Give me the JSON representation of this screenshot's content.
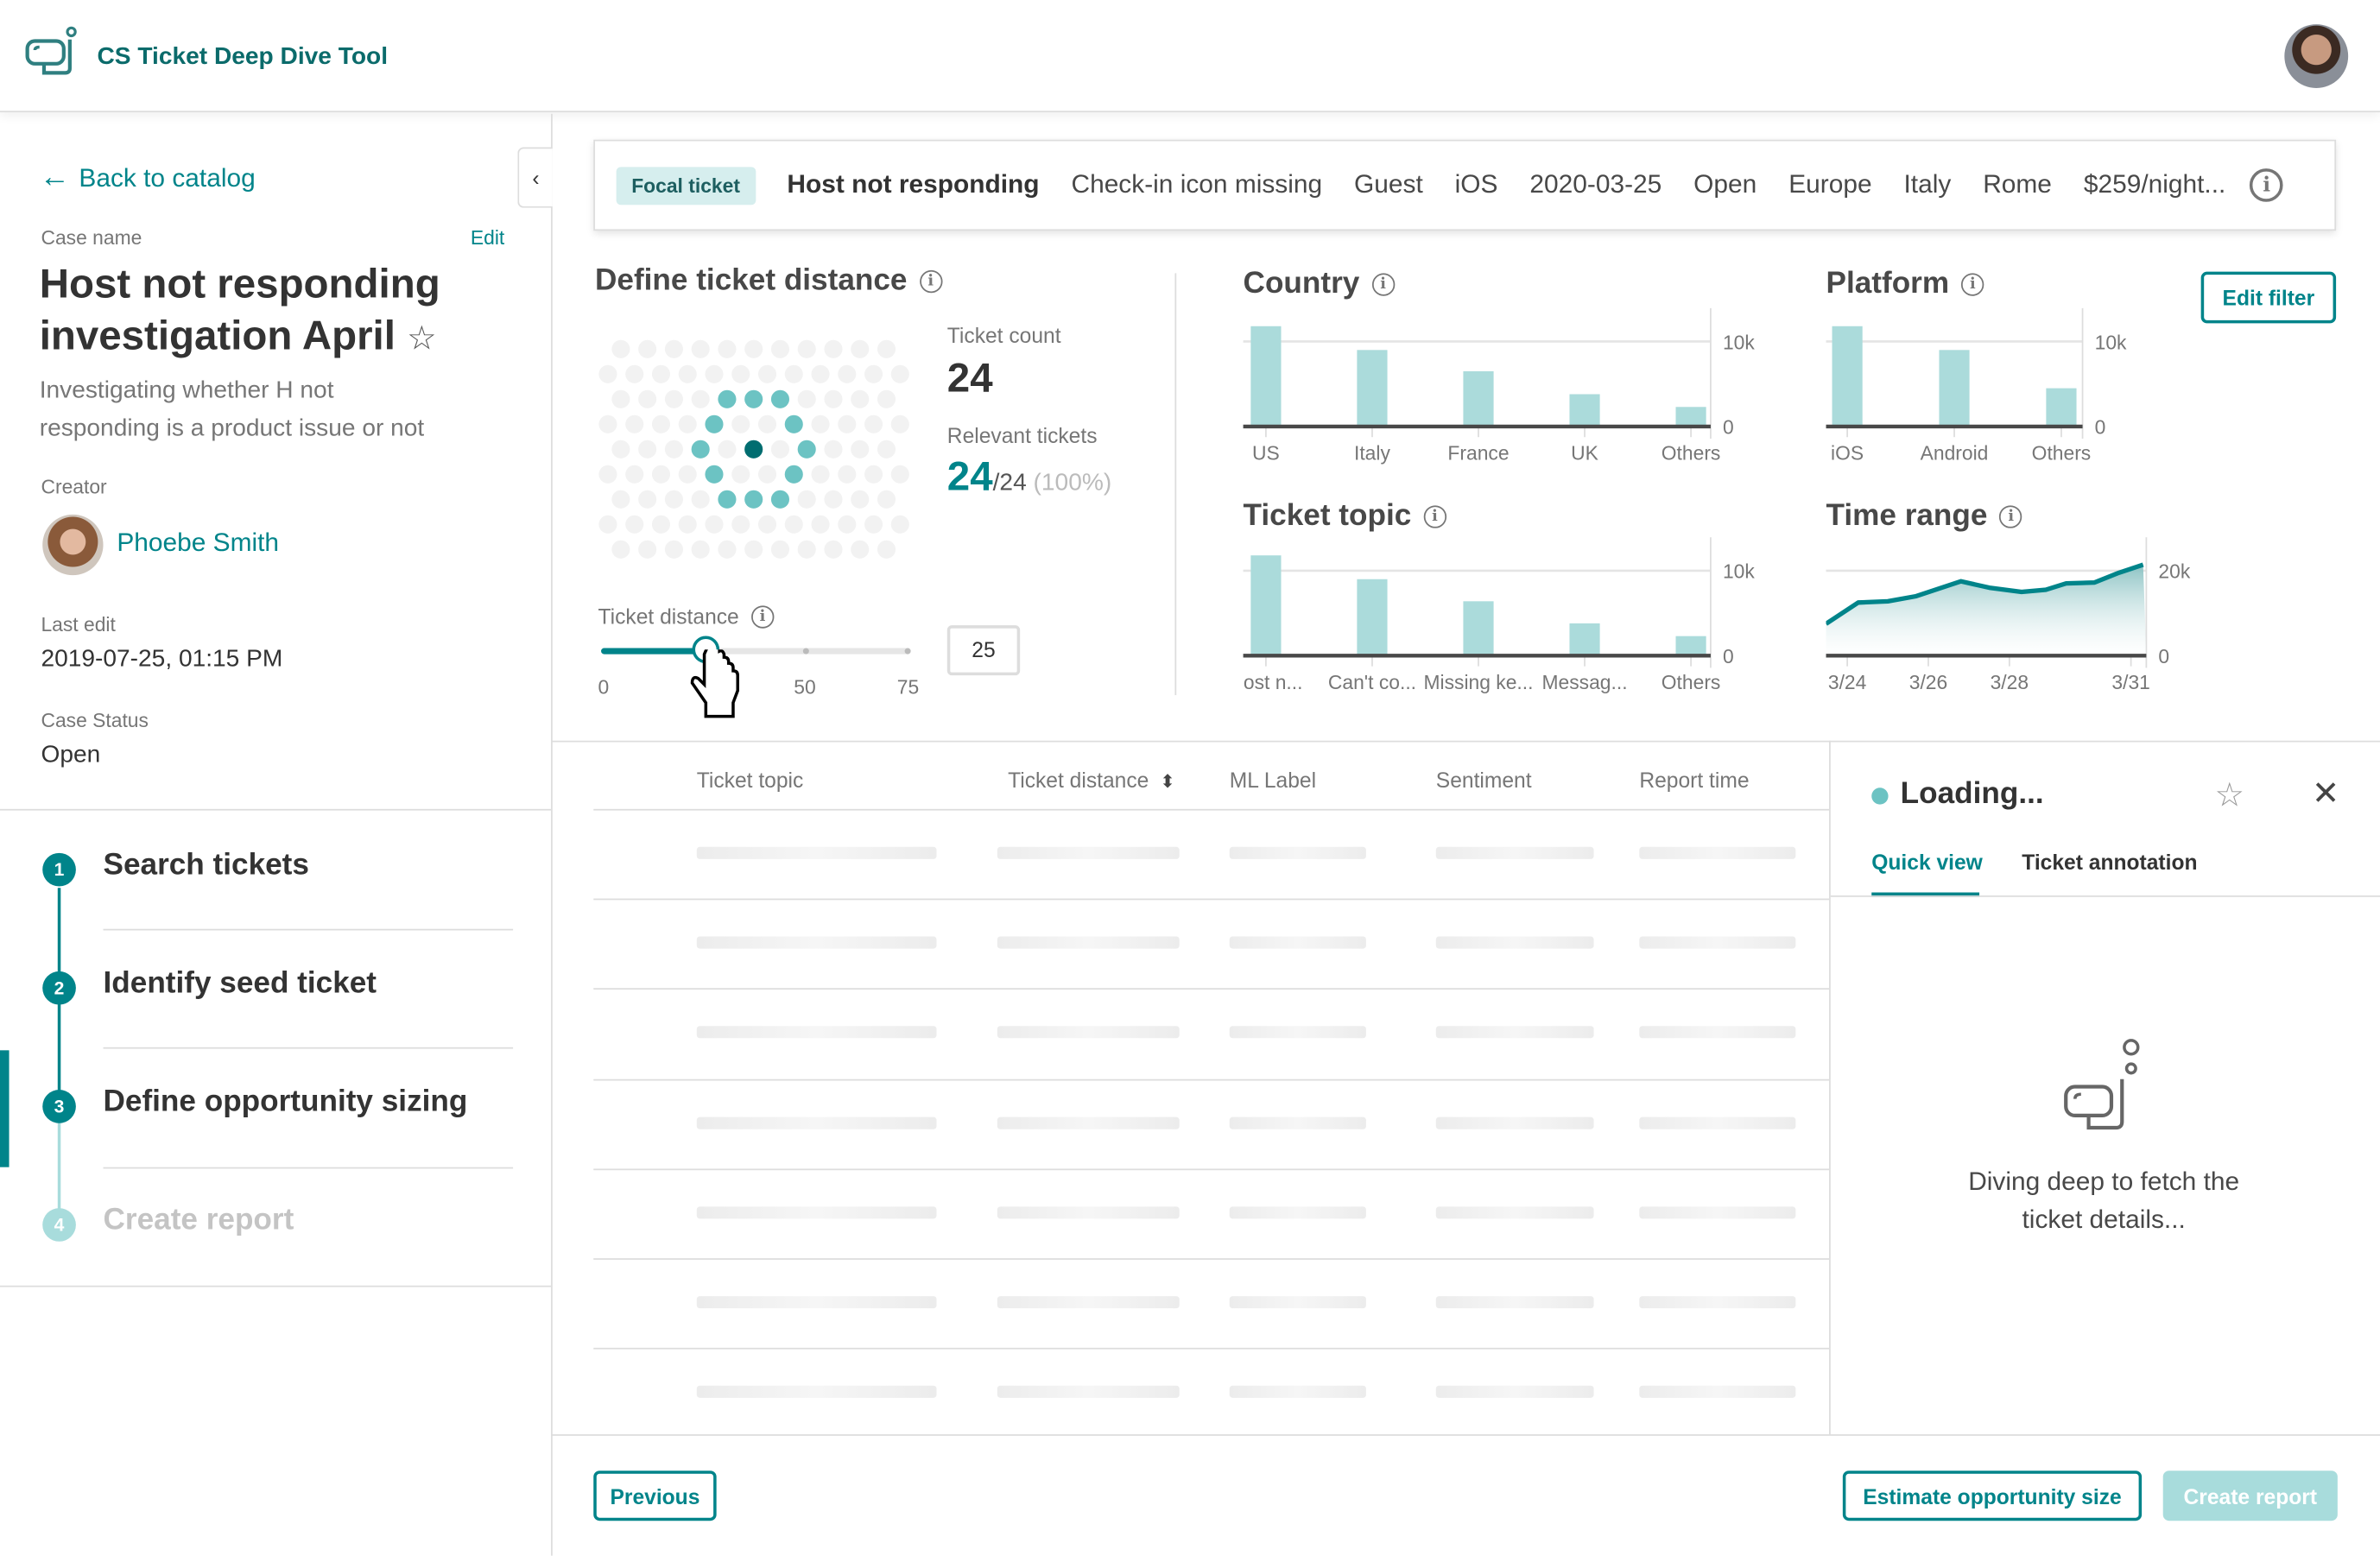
{
  "app": {
    "title": "CS Ticket Deep Dive Tool"
  },
  "sidebar": {
    "back_label": "Back to catalog",
    "case_name_label": "Case name",
    "edit_label": "Edit",
    "case_title_line1": "Host not responding",
    "case_title_line2": "investigation April",
    "description_line1": "Investigating whether H not",
    "description_line2": "responding is a product issue or not",
    "creator_label": "Creator",
    "creator_name": "Phoebe Smith",
    "last_edit_label": "Last edit",
    "last_edit_value": "2019-07-25, 01:15 PM",
    "status_label": "Case Status",
    "status_value": "Open",
    "steps": [
      {
        "num": "1",
        "label": "Search tickets",
        "state": "done"
      },
      {
        "num": "2",
        "label": "Identify seed ticket",
        "state": "done"
      },
      {
        "num": "3",
        "label": "Define opportunity sizing",
        "state": "active"
      },
      {
        "num": "4",
        "label": "Create report",
        "state": "disabled"
      }
    ]
  },
  "focal": {
    "chip": "Focal ticket",
    "title": "Host not responding",
    "attrs": [
      "Check-in icon missing",
      "Guest",
      "iOS",
      "2020-03-25",
      "Open",
      "Europe",
      "Italy",
      "Rome",
      "$259/night..."
    ]
  },
  "distance": {
    "title": "Define ticket distance",
    "ticket_count_label": "Ticket count",
    "ticket_count": "24",
    "relevant_label": "Relevant tickets",
    "relevant_value": "24",
    "relevant_total": "/24",
    "relevant_pct": "(100%)",
    "slider_label": "Ticket distance",
    "slider_value": "25",
    "slider_fraction": 0.333,
    "slider_ticks": [
      "0",
      "25",
      "50",
      "75"
    ]
  },
  "edit_filter_label": "Edit filter",
  "chart_data": [
    {
      "id": "country",
      "type": "bar",
      "title": "Country",
      "categories": [
        "US",
        "Italy",
        "France",
        "UK",
        "Others"
      ],
      "values": [
        11800,
        9000,
        6500,
        3800,
        2300
      ],
      "yticks": [
        "10k",
        "0"
      ],
      "ylim": [
        0,
        12000
      ]
    },
    {
      "id": "platform",
      "type": "bar",
      "title": "Platform",
      "categories": [
        "iOS",
        "Android",
        "Others"
      ],
      "values": [
        11800,
        9000,
        4500
      ],
      "yticks": [
        "10k",
        "0"
      ],
      "ylim": [
        0,
        12000
      ]
    },
    {
      "id": "topic",
      "type": "bar",
      "title": "Ticket topic",
      "categories": [
        "Host n...",
        "Can't co...",
        "Missing ke...",
        "Messag...",
        "Others"
      ],
      "values": [
        11800,
        9000,
        6400,
        3800,
        2300
      ],
      "yticks": [
        "10k",
        "0"
      ],
      "ylim": [
        0,
        12000
      ]
    },
    {
      "id": "time",
      "type": "area",
      "title": "Time range",
      "xticks": [
        "3/24",
        "3/26",
        "3/28",
        "3/31"
      ],
      "xtick_days": [
        0,
        2,
        4,
        7
      ],
      "x": [
        -0.55,
        0.27,
        1,
        1.7,
        2.8,
        3.5,
        4.3,
        4.9,
        5.4,
        6.1,
        6.7,
        7.3
      ],
      "values": [
        7500,
        12500,
        12800,
        14000,
        17500,
        16000,
        15000,
        15500,
        17000,
        17200,
        19500,
        21400
      ],
      "yticks": [
        "20k",
        "0"
      ],
      "ylim": [
        0,
        24000
      ]
    }
  ],
  "table": {
    "columns": [
      "Ticket topic",
      "Ticket distance",
      "ML Label",
      "Sentiment",
      "Report time"
    ],
    "row_count": 7
  },
  "panel": {
    "title": "Loading...",
    "tabs": [
      "Quick view",
      "Ticket annotation"
    ],
    "message_line1": "Diving deep to fetch the",
    "message_line2": "ticket details..."
  },
  "footer": {
    "previous": "Previous",
    "estimate": "Estimate opportunity size",
    "create": "Create report"
  },
  "colors": {
    "teal": "#00848a",
    "bar": "#abdbdb",
    "light_teal": "#6cc3c3",
    "disabled": "#a8dcdc"
  }
}
